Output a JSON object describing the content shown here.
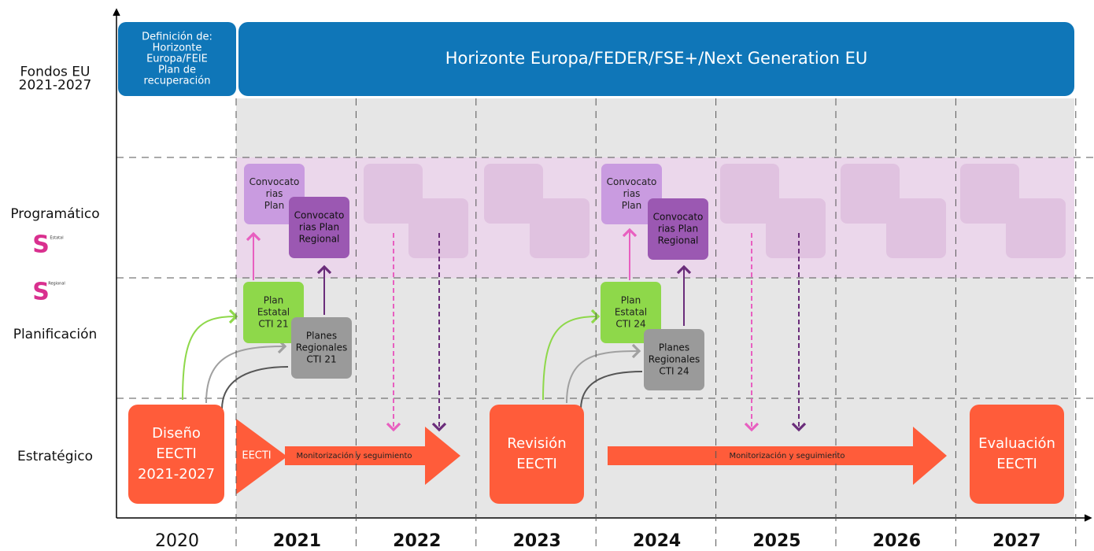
{
  "rows": [
    [
      "Fondos EU",
      "2021-2027"
    ],
    [
      "Programático"
    ],
    [
      "Planificación"
    ],
    [
      "Estratégico"
    ]
  ],
  "logos": [
    "Estatal",
    "Regional"
  ],
  "years": [
    "2020",
    "2021",
    "2022",
    "2023",
    "2024",
    "2025",
    "2026",
    "2027"
  ],
  "funds": {
    "definition": [
      "Definición de:",
      "Horizonte",
      "Europa/FEIE",
      "Plan de",
      "recuperación"
    ],
    "main": "Horizonte Europa/FEDER/FSE+/Next Generation EU"
  },
  "cycles": [
    {
      "calls_plan": [
        "Convocato",
        "rias",
        "Plan"
      ],
      "calls_regional": [
        "Convocato",
        "rias Plan",
        "Regional"
      ],
      "state_plan": [
        "Plan",
        "Estatal",
        "CTI 21"
      ],
      "regional_plans": [
        "Planes",
        "Regionales",
        "CTI 21"
      ]
    },
    {
      "calls_plan": [
        "Convocato",
        "rias",
        "Plan"
      ],
      "calls_regional": [
        "Convocato",
        "rias Plan",
        "Regional"
      ],
      "state_plan": [
        "Plan",
        "Estatal",
        "CTI 24"
      ],
      "regional_plans": [
        "Planes",
        "Regionales",
        "CTI 24"
      ]
    }
  ],
  "strategic": {
    "design": [
      "Diseño",
      "EECTI",
      "2021-2027"
    ],
    "eecti": "EECTI",
    "monitoring": [
      "Monitorización y seguimiento",
      "Monitorización y seguimiento"
    ],
    "review": [
      "Revisión",
      "EECTI"
    ],
    "evaluation": [
      "Evaluación",
      "EECTI"
    ]
  }
}
